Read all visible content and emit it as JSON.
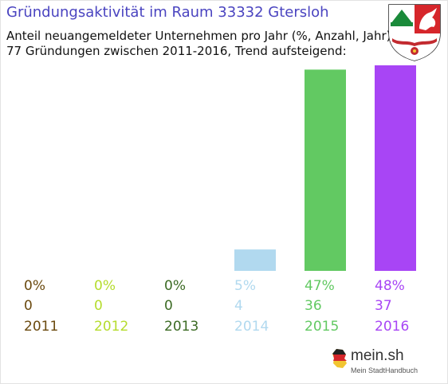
{
  "header": {
    "title": "Gründungsaktivität im Raum 33332 Gtersloh",
    "subtitle_line1": "Anteil neuangemeldeter Unternehmen pro Jahr (%, Anzahl, Jahr)",
    "subtitle_line2": "77 Gründungen zwischen 2011-2016, Trend aufsteigend:"
  },
  "logo": {
    "text": "mein.sh",
    "tagline": "Mein StadtHandbuch"
  },
  "chart_data": {
    "type": "bar",
    "categories": [
      "2011",
      "2012",
      "2013",
      "2014",
      "2015",
      "2016"
    ],
    "values": [
      0,
      0,
      0,
      4,
      36,
      37
    ],
    "percent_labels": [
      "0%",
      "0%",
      "0%",
      "5%",
      "47%",
      "48%"
    ],
    "percent_values": [
      0,
      0,
      0,
      5,
      47,
      48
    ],
    "colors": [
      "#6b4a0f",
      "#b5dc2d",
      "#3c6b24",
      "#b1d9ef",
      "#62c962",
      "#a845f5"
    ],
    "title": "Gründungsaktivität im Raum 33332 Gtersloh",
    "subtitle": "Anteil neuangemeldeter Unternehmen pro Jahr (%, Anzahl, Jahr)",
    "total_label": "77 Gründungen zwischen 2011-2016, Trend aufsteigend:",
    "grid": false,
    "legend": "none"
  }
}
